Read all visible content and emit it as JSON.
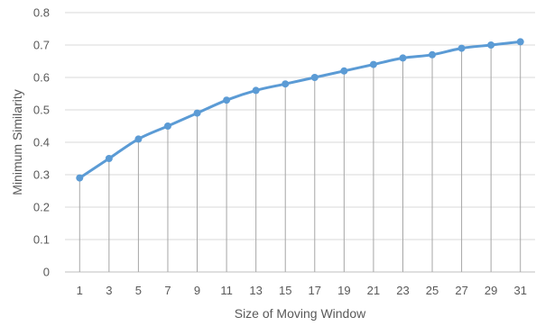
{
  "chart_data": {
    "type": "line",
    "x": [
      1,
      3,
      5,
      7,
      9,
      11,
      13,
      15,
      17,
      19,
      21,
      23,
      25,
      27,
      29,
      31
    ],
    "series": [
      {
        "values": [
          0.29,
          0.35,
          0.41,
          0.45,
          0.49,
          0.53,
          0.56,
          0.58,
          0.6,
          0.62,
          0.64,
          0.66,
          0.67,
          0.69,
          0.7,
          0.71
        ]
      }
    ],
    "xlabel": "Size of Moving Window",
    "ylabel": "Minimum Similarity",
    "ylim": [
      0,
      0.8
    ],
    "yticks": [
      "0",
      "0.1",
      "0.2",
      "0.3",
      "0.4",
      "0.5",
      "0.6",
      "0.7",
      "0.8"
    ],
    "xticks": [
      "1",
      "3",
      "5",
      "7",
      "9",
      "11",
      "13",
      "15",
      "17",
      "19",
      "21",
      "23",
      "25",
      "27",
      "29",
      "31"
    ],
    "grid": "horizontal",
    "drop_lines": true,
    "legend": "none",
    "colors": {
      "line": "#5B9BD5",
      "grid": "#D9D9D9",
      "drop_line": "#A6A6A6",
      "text": "#595959"
    }
  }
}
